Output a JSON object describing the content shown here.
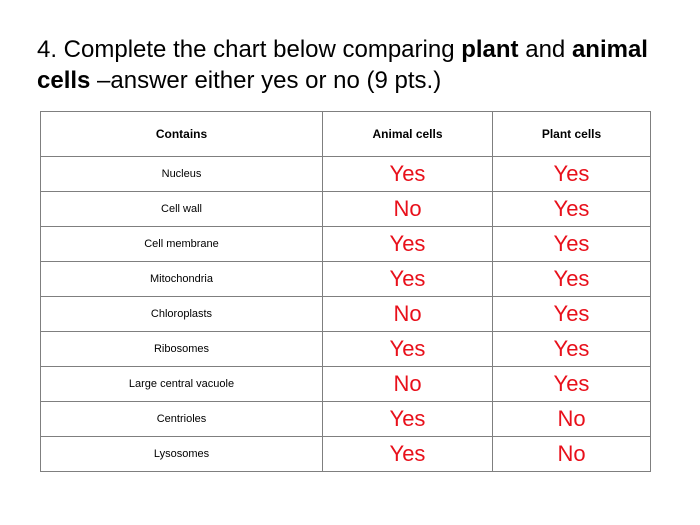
{
  "question": {
    "part1": "4. Complete the chart below comparing ",
    "bold1": "plant",
    "part2": " and ",
    "bold2": "animal cells",
    "part3": " –answer either yes or no (9 pts.)"
  },
  "table": {
    "headers": [
      "Contains",
      "Animal cells",
      "Plant cells"
    ],
    "rows": [
      {
        "feature": "Nucleus",
        "animal": "Yes",
        "plant": "Yes"
      },
      {
        "feature": "Cell wall",
        "animal": "No",
        "plant": "Yes"
      },
      {
        "feature": "Cell membrane",
        "animal": "Yes",
        "plant": "Yes"
      },
      {
        "feature": "Mitochondria",
        "animal": "Yes",
        "plant": "Yes"
      },
      {
        "feature": "Chloroplasts",
        "animal": "No",
        "plant": "Yes"
      },
      {
        "feature": "Ribosomes",
        "animal": "Yes",
        "plant": "Yes"
      },
      {
        "feature": "Large central vacuole",
        "animal": "No",
        "plant": "Yes"
      },
      {
        "feature": "Centrioles",
        "animal": "Yes",
        "plant": "No"
      },
      {
        "feature": "Lysosomes",
        "animal": "Yes",
        "plant": "No"
      }
    ]
  },
  "colors": {
    "answer_text": "#e8101b",
    "grid": "#7f7f7f"
  }
}
